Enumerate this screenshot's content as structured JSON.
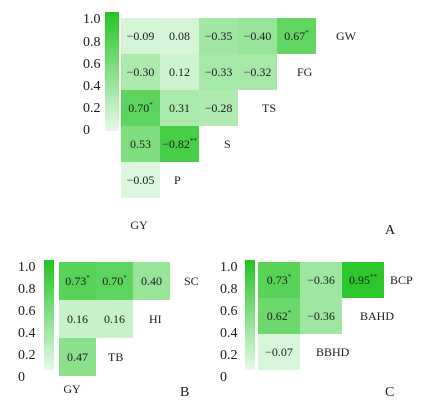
{
  "colors": {
    "low": "#e6f9e8",
    "high": "#22c422",
    "text": "#1a1a1a"
  },
  "chart_data": [
    {
      "type": "heatmap",
      "panel_label": "A",
      "colorbar": {
        "ticks": [
          "1.0",
          "0.8",
          "0.6",
          "0.4",
          "0.2",
          "0"
        ],
        "range": [
          0,
          1
        ]
      },
      "variables": [
        "GW",
        "FG",
        "TS",
        "S",
        "P",
        "GY"
      ],
      "row_corner_labels": [
        "GW",
        "FG",
        "TS",
        "S",
        "P"
      ],
      "bottom_label": "GY",
      "rows": [
        [
          {
            "value": -0.09,
            "label": "−0.09"
          },
          {
            "value": 0.08,
            "label": "0.08"
          },
          {
            "value": -0.35,
            "label": "−0.35"
          },
          {
            "value": -0.4,
            "label": "−0.40"
          },
          {
            "value": 0.67,
            "label": "0.67",
            "sig": "*"
          }
        ],
        [
          {
            "value": -0.3,
            "label": "−0.30"
          },
          {
            "value": 0.12,
            "label": "0.12"
          },
          {
            "value": -0.33,
            "label": "−0.33"
          },
          {
            "value": -0.32,
            "label": "−0.32"
          }
        ],
        [
          {
            "value": 0.7,
            "label": "0.70",
            "sig": "*"
          },
          {
            "value": 0.31,
            "label": "0.31"
          },
          {
            "value": -0.28,
            "label": "−0.28"
          }
        ],
        [
          {
            "value": 0.53,
            "label": "0.53"
          },
          {
            "value": -0.82,
            "label": "−0.82",
            "sig": "**"
          }
        ],
        [
          {
            "value": -0.05,
            "label": "−0.05"
          }
        ]
      ]
    },
    {
      "type": "heatmap",
      "panel_label": "B",
      "colorbar": {
        "ticks": [
          "1.0",
          "0.8",
          "0.6",
          "0.4",
          "0.2",
          "0"
        ],
        "range": [
          0,
          1
        ]
      },
      "variables": [
        "SC",
        "HI",
        "TB",
        "GY"
      ],
      "row_corner_labels": [
        "SC",
        "HI",
        "TB"
      ],
      "bottom_label": "GY",
      "rows": [
        [
          {
            "value": 0.73,
            "label": "0.73",
            "sig": "*"
          },
          {
            "value": 0.7,
            "label": "0.70",
            "sig": "*"
          },
          {
            "value": 0.4,
            "label": "0.40"
          }
        ],
        [
          {
            "value": 0.16,
            "label": "0.16"
          },
          {
            "value": 0.16,
            "label": "0.16"
          }
        ],
        [
          {
            "value": 0.47,
            "label": "0.47"
          }
        ]
      ]
    },
    {
      "type": "heatmap",
      "panel_label": "C",
      "colorbar": {
        "ticks": [
          "1.0",
          "0.8",
          "0.6",
          "0.4",
          "0.2",
          "0"
        ],
        "range": [
          0,
          1
        ]
      },
      "variables": [
        "BCP",
        "BAHD",
        "BBHD"
      ],
      "row_corner_labels": [
        "BCP",
        "BAHD",
        "BBHD"
      ],
      "bottom_label": "",
      "rows": [
        [
          {
            "value": 0.73,
            "label": "0.73",
            "sig": "*"
          },
          {
            "value": -0.36,
            "label": "−0.36"
          },
          {
            "value": 0.95,
            "label": "0.95",
            "sig": "**"
          }
        ],
        [
          {
            "value": 0.62,
            "label": "0.62",
            "sig": "*"
          },
          {
            "value": -0.36,
            "label": "−0.36"
          }
        ],
        [
          {
            "value": -0.07,
            "label": "−0.07"
          }
        ]
      ]
    }
  ]
}
